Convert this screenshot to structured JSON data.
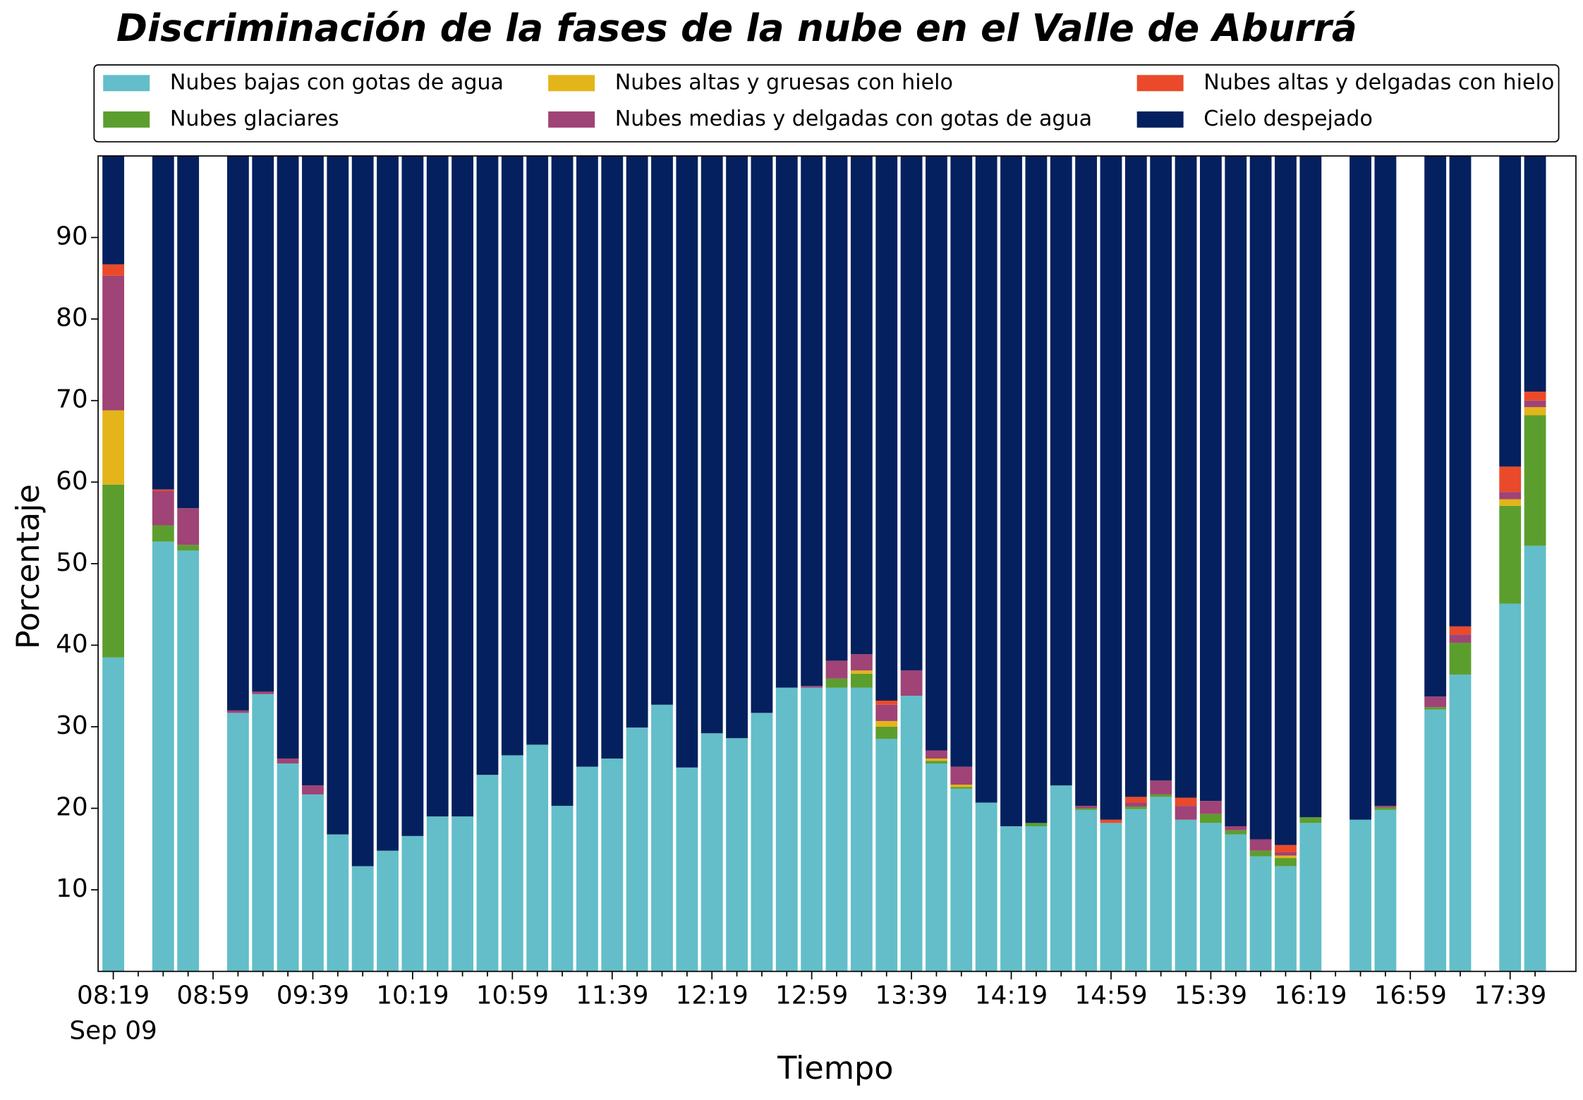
{
  "chart_data": {
    "type": "stacked_bar",
    "title": "Discriminación de la fases de la nube en el Valle de Aburrá",
    "xlabel": "Tiempo",
    "ylabel": "Porcentaje",
    "date": "Sep 09",
    "categories": [
      "08:19",
      null,
      null,
      null,
      "08:59",
      null,
      null,
      null,
      "09:39",
      null,
      null,
      null,
      "10:19",
      null,
      null,
      null,
      "10:59",
      null,
      null,
      null,
      "11:39",
      null,
      null,
      null,
      "12:19",
      null,
      null,
      null,
      "12:59",
      null,
      null,
      null,
      "13:39",
      null,
      null,
      null,
      "14:19",
      null,
      null,
      null,
      "14:59",
      null,
      null,
      null,
      "15:39",
      null,
      null,
      null,
      "16:19",
      null,
      null,
      null,
      "16:59",
      null,
      null,
      null,
      "17:39",
      null
    ],
    "ylim": [
      0,
      100
    ],
    "yticks": [
      10,
      20,
      30,
      40,
      50,
      60,
      70,
      80,
      90
    ],
    "series": [
      {
        "name": "Nubes bajas con gotas de agua",
        "color": "#63bec9",
        "values": [
          38.5,
          null,
          52.7,
          51.6,
          null,
          31.7,
          34.0,
          25.5,
          21.7,
          16.8,
          12.9,
          14.8,
          16.6,
          19.0,
          19.0,
          24.1,
          26.5,
          27.8,
          20.3,
          25.1,
          26.1,
          29.9,
          32.7,
          25.0,
          29.2,
          28.6,
          31.7,
          34.8,
          34.8,
          34.8,
          34.8,
          28.5,
          33.8,
          25.5,
          22.4,
          20.7,
          17.8,
          17.8,
          22.8,
          19.8,
          18.2,
          19.9,
          21.4,
          18.6,
          18.2,
          16.8,
          14.1,
          12.9,
          18.2,
          null,
          18.6,
          19.8,
          null,
          32.1,
          36.4,
          null,
          45.1,
          52.2
        ]
      },
      {
        "name": "Nubes glaciares",
        "color": "#5c9e2e",
        "values": [
          21.2,
          null,
          2.0,
          0.7,
          null,
          0,
          0,
          0,
          0,
          0,
          0,
          0,
          0,
          0,
          0,
          0,
          0,
          0,
          0,
          0,
          0,
          0,
          0,
          0,
          0,
          0,
          0,
          0,
          0,
          1.1,
          1.7,
          1.5,
          0,
          0.3,
          0.2,
          0,
          0,
          0.4,
          0,
          0.2,
          0,
          0.3,
          0.3,
          0,
          1.1,
          0.5,
          0.7,
          1.0,
          0.7,
          null,
          0,
          0.3,
          null,
          0.3,
          3.9,
          null,
          12.0,
          16.0
        ]
      },
      {
        "name": "Nubes altas y gruesas con hielo",
        "color": "#e3b51a",
        "values": [
          9.1,
          null,
          0,
          0,
          null,
          0,
          0,
          0,
          0,
          0,
          0,
          0,
          0,
          0,
          0,
          0,
          0,
          0,
          0,
          0,
          0,
          0,
          0,
          0,
          0,
          0,
          0,
          0,
          0,
          0,
          0.4,
          0.7,
          0,
          0.3,
          0.3,
          0,
          0,
          0,
          0,
          0,
          0,
          0,
          0,
          0,
          0,
          0,
          0,
          0.3,
          0,
          null,
          0,
          0,
          null,
          0,
          0,
          null,
          0.8,
          1.0
        ]
      },
      {
        "name": "Nubes medias y delgadas con gotas de agua",
        "color": "#a04376",
        "values": [
          16.5,
          null,
          4.2,
          4.5,
          null,
          0.3,
          0.3,
          0.6,
          1.1,
          0,
          0,
          0,
          0,
          0,
          0,
          0,
          0,
          0,
          0,
          0,
          0,
          0,
          0,
          0,
          0,
          0,
          0,
          0,
          0.2,
          2.2,
          2.0,
          2.0,
          3.1,
          1.0,
          2.2,
          0,
          0,
          0,
          0,
          0.3,
          0,
          0.5,
          1.7,
          1.7,
          1.6,
          0.5,
          1.4,
          0.4,
          0,
          null,
          0,
          0.2,
          null,
          1.3,
          1.0,
          null,
          0.9,
          0.8
        ]
      },
      {
        "name": "Nubes altas y delgadas con hielo",
        "color": "#ea4a2a",
        "values": [
          1.4,
          null,
          0.2,
          0,
          null,
          0,
          0,
          0,
          0,
          0,
          0,
          0,
          0,
          0,
          0,
          0,
          0,
          0,
          0,
          0,
          0,
          0,
          0,
          0,
          0,
          0,
          0,
          0,
          0,
          0,
          0,
          0.5,
          0,
          0,
          0,
          0,
          0,
          0,
          0,
          0,
          0.4,
          0.7,
          0,
          1.0,
          0,
          0,
          0,
          0.9,
          0,
          null,
          0,
          0,
          null,
          0,
          1.0,
          null,
          3.1,
          1.1
        ]
      },
      {
        "name": "Cielo despejado",
        "color": "#04205e",
        "values": [
          13.3,
          null,
          40.9,
          43.2,
          null,
          68.0,
          65.7,
          73.9,
          77.2,
          83.2,
          87.1,
          85.2,
          83.4,
          81.0,
          81.0,
          75.9,
          73.5,
          72.2,
          79.7,
          74.9,
          73.9,
          70.1,
          67.3,
          75.0,
          70.8,
          71.4,
          68.3,
          65.2,
          65.0,
          61.9,
          61.1,
          66.8,
          63.1,
          72.9,
          74.9,
          79.3,
          82.2,
          81.8,
          77.2,
          79.7,
          81.4,
          78.6,
          76.6,
          78.7,
          79.1,
          82.2,
          83.8,
          84.5,
          81.1,
          null,
          81.4,
          79.7,
          null,
          66.3,
          57.7,
          null,
          38.1,
          28.9
        ]
      }
    ],
    "legend": "top"
  }
}
